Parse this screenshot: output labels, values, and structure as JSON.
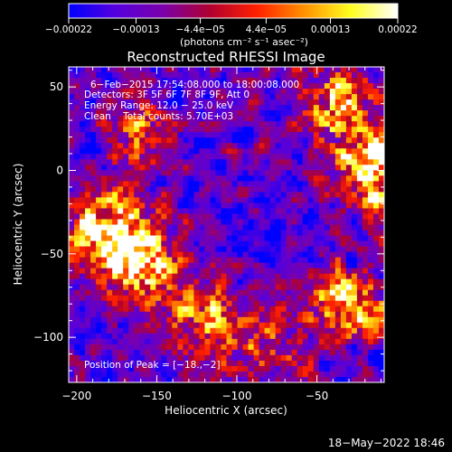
{
  "chart_data": {
    "type": "heatmap",
    "title": "Reconstructed RHESSI Image",
    "xlabel": "Heliocentric X (arcsec)",
    "ylabel": "Heliocentric Y (arcsec)",
    "xlim": [
      -205,
      -8
    ],
    "ylim": [
      -127,
      62
    ],
    "x_ticks": [
      -200,
      -150,
      -100,
      -50
    ],
    "y_ticks": [
      50,
      0,
      -50,
      -100
    ],
    "x_tick_labels": [
      "−200",
      "−150",
      "−100",
      "−50"
    ],
    "y_tick_labels": [
      "50",
      "0",
      "−50",
      "−100"
    ],
    "colorbar": {
      "range": [
        -0.00022,
        0.00022
      ],
      "ticks": [
        -0.00022,
        -0.00013,
        -4.4e-05,
        4.4e-05,
        0.00013,
        0.00022
      ],
      "tick_labels": [
        "−0.00022",
        "−0.00013",
        "−4.4e−05",
        "4.4e−05",
        "0.00013",
        "0.00022"
      ],
      "unit_label": "(photons cm⁻² s⁻¹ asec⁻²)",
      "colormap": [
        "#0000ff",
        "#5500dd",
        "#7a00aa",
        "#b00030",
        "#ff2000",
        "#ff9000",
        "#ffff20",
        "#ffffff"
      ]
    },
    "annotations": [
      "6−Feb−2015 17:54:08.000 to 18:00:08.000",
      "Detectors: 3F 5F 6F 7F 8F 9F, Att 0",
      "Energy Range: 12.0 − 25.0 keV",
      "Clean    Total counts: 5.70E+03"
    ],
    "peak_label": "Position of Peak = [−18.,−2]",
    "peak_position": [
      -18,
      -2
    ],
    "bright_regions": [
      {
        "x": -180,
        "y": -35,
        "level": 0.95
      },
      {
        "x": -160,
        "y": -55,
        "level": 0.8
      },
      {
        "x": -15,
        "y": 0,
        "level": 1.0
      },
      {
        "x": -40,
        "y": 40,
        "level": 0.7
      },
      {
        "x": -30,
        "y": -80,
        "level": 0.75
      },
      {
        "x": -160,
        "y": 20,
        "level": 0.45
      },
      {
        "x": -120,
        "y": -90,
        "level": 0.55
      },
      {
        "x": -80,
        "y": -110,
        "level": 0.45
      }
    ],
    "grid": false,
    "legend": "none"
  },
  "footer": {
    "timestamp": "18−May−2022 18:46"
  }
}
